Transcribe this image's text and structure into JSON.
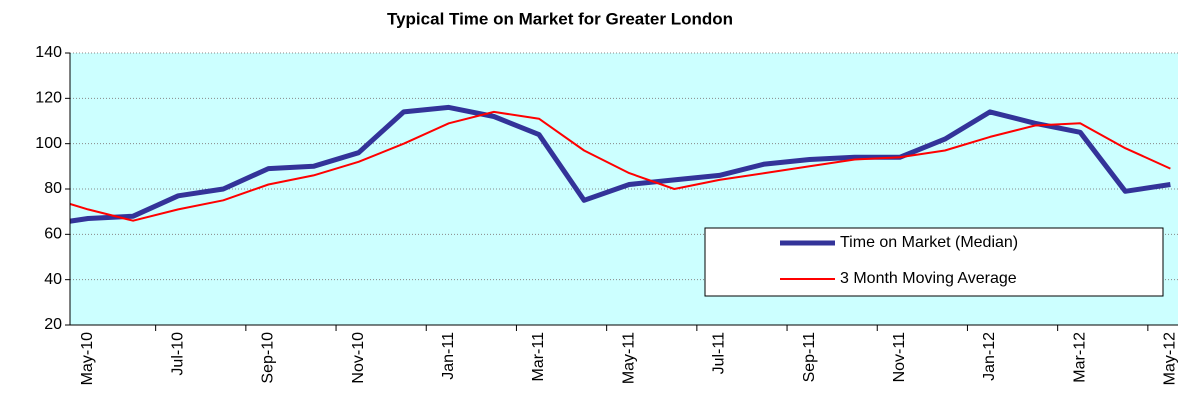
{
  "chart_data": {
    "type": "line",
    "title": "Typical Time on Market for Greater London",
    "categories": [
      null,
      "May-10",
      null,
      "Jul-10",
      null,
      "Sep-10",
      null,
      "Nov-10",
      null,
      "Jan-11",
      null,
      "Mar-11",
      null,
      "May-11",
      null,
      "Jul-11",
      null,
      "Sep-11",
      null,
      "Nov-11",
      null,
      "Jan-12",
      null,
      "Mar-12",
      null,
      "May-12"
    ],
    "series": [
      {
        "name": "Time on Market (Median)",
        "color": "#333399",
        "width": 5,
        "values": [
          64,
          67,
          68,
          77,
          80,
          89,
          90,
          96,
          114,
          116,
          112,
          104,
          75,
          82,
          84,
          86,
          91,
          93,
          94,
          94,
          102,
          114,
          109,
          105,
          79,
          82
        ]
      },
      {
        "name": "3 Month Moving Average",
        "color": "#ff0000",
        "width": 2,
        "values": [
          77,
          71,
          66,
          71,
          75,
          82,
          86,
          92,
          100,
          109,
          114,
          111,
          97,
          87,
          80,
          84,
          87,
          90,
          93,
          94,
          97,
          103,
          108,
          109,
          98,
          89
        ]
      }
    ],
    "ylim": [
      20,
      140
    ],
    "yticks": [
      20,
      40,
      60,
      80,
      100,
      120,
      140
    ],
    "grid": true,
    "legend": "lower-right"
  }
}
